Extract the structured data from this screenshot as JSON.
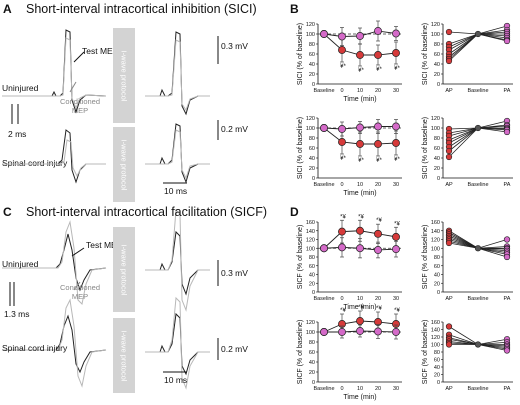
{
  "panels": {
    "A": {
      "letter": "A",
      "title": "Short-interval intracortical inhibition (SICI)",
      "label_uninjured": "Uninjured",
      "label_sci": "Spinal cord injury",
      "test_mep": "Test MEP",
      "conditioned_mep": "Conditioned MEP",
      "isi": "2 ms",
      "protocol": "I-wave protocol",
      "scale_top": "0.3 mV",
      "scale_bottom": "0.2 mV",
      "time_scale": "10 ms"
    },
    "C": {
      "letter": "C",
      "title": "Short-interval intracortical facilitation (SICF)",
      "label_uninjured": "Uninjured",
      "label_sci": "Spinal cord injury",
      "test_mep": "Test MEP",
      "conditioned_mep": "Conditioned MEP",
      "isi": "1.3 ms",
      "protocol": "I-wave protocol",
      "scale_top": "0.3 mV",
      "scale_bottom": "0.2 mV",
      "time_scale": "10 ms"
    },
    "B": {
      "letter": "B"
    },
    "D": {
      "letter": "D"
    }
  },
  "colors": {
    "red": "#d63a3a",
    "pink": "#d46ac8",
    "dark": "#222222",
    "gray": "#b8b8b8"
  },
  "chart_data": [
    {
      "type": "line",
      "panel": "B-top",
      "ylabel": "SICI (% of baseline)",
      "xlabel": "Time (min)",
      "categories": [
        "Baseline",
        "0",
        "10",
        "20",
        "30"
      ],
      "ylim": [
        0,
        120
      ],
      "yticks": [
        0,
        20,
        40,
        60,
        80,
        100,
        120
      ],
      "reference": 100,
      "series": [
        {
          "color": "red",
          "values": [
            100,
            68,
            58,
            58,
            62
          ],
          "err": [
            0,
            24,
            22,
            20,
            22
          ]
        },
        {
          "color": "pink",
          "values": [
            100,
            95,
            96,
            106,
            101
          ],
          "err": [
            0,
            18,
            16,
            20,
            14
          ]
        }
      ],
      "stars": [
        "",
        "¥*",
        "¥*",
        "¥*",
        "¥*"
      ]
    },
    {
      "type": "line",
      "panel": "B-bottom",
      "ylabel": "SICI (% of baseline)",
      "xlabel": "Time (min)",
      "categories": [
        "Baseline",
        "0",
        "10",
        "20",
        "30"
      ],
      "ylim": [
        0,
        120
      ],
      "yticks": [
        0,
        20,
        40,
        60,
        80,
        100,
        120
      ],
      "reference": 100,
      "series": [
        {
          "color": "red",
          "values": [
            100,
            72,
            68,
            68,
            70
          ],
          "err": [
            0,
            24,
            24,
            24,
            24
          ]
        },
        {
          "color": "pink",
          "values": [
            100,
            98,
            101,
            103,
            103
          ],
          "err": [
            0,
            14,
            12,
            14,
            14
          ]
        }
      ],
      "stars": [
        "",
        "¥*",
        "¥*",
        "¥*",
        "¥*"
      ]
    },
    {
      "type": "line",
      "panel": "B-top-individual",
      "ylabel": "SICI (% of baseline)",
      "categories": [
        "AP",
        "Baseline",
        "PA"
      ],
      "ylim": [
        0,
        120
      ],
      "yticks": [
        0,
        20,
        40,
        60,
        80,
        100,
        120
      ],
      "ap": [
        104,
        80,
        74,
        68,
        60,
        54,
        50,
        46
      ],
      "pa": [
        116,
        108,
        104,
        100,
        96,
        92,
        88,
        86
      ]
    },
    {
      "type": "line",
      "panel": "B-bottom-individual",
      "ylabel": "SICI (% of baseline)",
      "categories": [
        "AP",
        "Baseline",
        "PA"
      ],
      "ylim": [
        0,
        120
      ],
      "yticks": [
        0,
        20,
        40,
        60,
        80,
        100,
        120
      ],
      "ap": [
        98,
        90,
        84,
        76,
        70,
        62,
        54,
        42
      ],
      "pa": [
        114,
        106,
        104,
        100,
        98,
        96,
        92
      ]
    },
    {
      "type": "line",
      "panel": "D-top",
      "ylabel": "SICF (% of baseline)",
      "xlabel": "Time (min)",
      "categories": [
        "Baseline",
        "0",
        "10",
        "20",
        "30"
      ],
      "ylim": [
        0,
        160
      ],
      "yticks": [
        0,
        20,
        40,
        60,
        80,
        100,
        120,
        140,
        160
      ],
      "reference": 100,
      "series": [
        {
          "color": "red",
          "values": [
            100,
            138,
            140,
            133,
            126
          ],
          "err": [
            0,
            26,
            24,
            22,
            22
          ]
        },
        {
          "color": "pink",
          "values": [
            100,
            102,
            100,
            96,
            98
          ],
          "err": [
            0,
            22,
            22,
            18,
            18
          ]
        }
      ],
      "stars": [
        "",
        "*¥",
        "*¥",
        "*¥",
        "*¥"
      ]
    },
    {
      "type": "line",
      "panel": "D-bottom",
      "ylabel": "SICF (% of baseline)",
      "xlabel": "Time (min)",
      "categories": [
        "Baseline",
        "0",
        "10",
        "20",
        "30"
      ],
      "ylim": [
        0,
        120
      ],
      "yticks": [
        0,
        20,
        40,
        60,
        80,
        100,
        120
      ],
      "reference": 100,
      "series": [
        {
          "color": "red",
          "values": [
            100,
            116,
            122,
            120,
            116
          ],
          "err": [
            0,
            20,
            20,
            20,
            20
          ]
        },
        {
          "color": "pink",
          "values": [
            100,
            100,
            102,
            101,
            100
          ],
          "err": [
            0,
            12,
            12,
            14,
            14
          ]
        }
      ],
      "stars": [
        "",
        "*¥",
        "*¥",
        "*¥",
        "*¥"
      ]
    },
    {
      "type": "line",
      "panel": "D-top-individual",
      "ylabel": "SICF (% of baseline)",
      "categories": [
        "AP",
        "Baseline",
        "PA"
      ],
      "ylim": [
        0,
        160
      ],
      "yticks": [
        0,
        20,
        40,
        60,
        80,
        100,
        120,
        140,
        160
      ],
      "ap": [
        140,
        136,
        132,
        128,
        124,
        120,
        116,
        112
      ],
      "pa": [
        120,
        104,
        100,
        98,
        94,
        90,
        86,
        80
      ]
    },
    {
      "type": "line",
      "panel": "D-bottom-individual",
      "ylabel": "SICF (% of baseline)",
      "categories": [
        "AP",
        "Baseline",
        "PA"
      ],
      "ylim": [
        0,
        160
      ],
      "yticks": [
        0,
        20,
        40,
        60,
        80,
        100,
        120,
        140,
        160
      ],
      "ap": [
        148,
        126,
        118,
        114,
        108,
        104,
        100
      ],
      "pa": [
        114,
        106,
        100,
        96,
        92,
        88,
        84
      ]
    }
  ]
}
